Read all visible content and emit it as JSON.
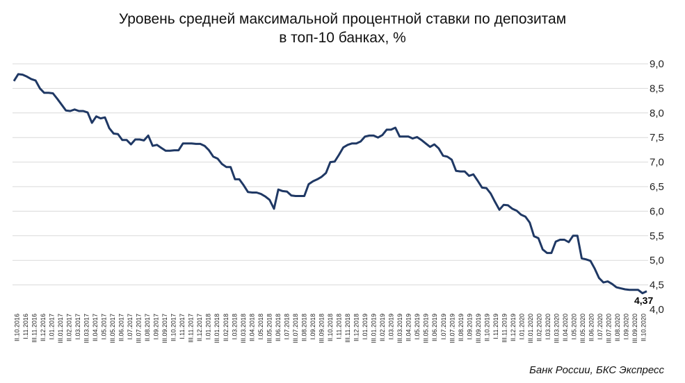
{
  "chart_data": {
    "type": "line",
    "title_line1": "Уровень средней максимальной процентной ставки по депозитам",
    "title_line2": "в топ-10 банках, %",
    "source": "Банк России, БКС Экспресс",
    "ylim": [
      4.0,
      9.0
    ],
    "y_ticks": [
      "4,0",
      "4,5",
      "5,0",
      "5,5",
      "6,0",
      "6,5",
      "7,0",
      "7,5",
      "8,0",
      "8,5",
      "9,0"
    ],
    "y_tick_values": [
      4.0,
      4.5,
      5.0,
      5.5,
      6.0,
      6.5,
      7.0,
      7.5,
      8.0,
      8.5,
      9.0
    ],
    "grid": true,
    "x_labels": [
      "II.10.2016",
      "I.11.2016",
      "III.11.2016",
      "II.12.2016",
      "I.01.2017",
      "III.01.2017",
      "II.02.2017",
      "I.03.2017",
      "III.03.2017",
      "II.04.2017",
      "I.05.2017",
      "III.05.2017",
      "II.06.2017",
      "I.07.2017",
      "III.07.2017",
      "II.08.2017",
      "I.09.2017",
      "III.09.2017",
      "II.10.2017",
      "I.11.2017",
      "III.11.2017",
      "II.12.2017",
      "I.01.2018",
      "III.01.2018",
      "II.02.2018",
      "I.03.2018",
      "III.03.2018",
      "II.04.2018",
      "I.05.2018",
      "III.05.2018",
      "II.06.2018",
      "I.07.2018",
      "III.07.2018",
      "II.08.2018",
      "I.09.2018",
      "III.09.2018",
      "II.10.2018",
      "I.11.2018",
      "III.11.2018",
      "II.12.2018",
      "I.01.2019",
      "III.01.2019",
      "II.02.2019",
      "I.03.2019",
      "III.03.2019",
      "II.04.2019",
      "I.05.2019",
      "III.05.2019",
      "II.06.2019",
      "I.07.2019",
      "III.07.2019",
      "II.08.2019",
      "I.09.2019",
      "III.09.2019",
      "II.10.2019",
      "I.11.2019",
      "III.11.2019",
      "II.12.2019",
      "I.01.2020",
      "III.01.2020",
      "II.02.2020",
      "I.03.2020",
      "III.03.2020",
      "II.04.2020",
      "I.05.2020",
      "III.05.2020",
      "II.06.2020",
      "I.07.2020",
      "III.07.2020",
      "II.08.2020",
      "I.09.2020",
      "III.09.2020",
      "II.10.2020"
    ],
    "series": [
      {
        "color": "#1f3864",
        "values": [
          8.65,
          8.79,
          8.78,
          8.74,
          8.69,
          8.66,
          8.5,
          8.41,
          8.41,
          8.4,
          8.29,
          8.17,
          8.05,
          8.04,
          8.07,
          8.04,
          8.04,
          8.01,
          7.8,
          7.93,
          7.89,
          7.91,
          7.69,
          7.58,
          7.57,
          7.45,
          7.45,
          7.36,
          7.46,
          7.46,
          7.44,
          7.54,
          7.33,
          7.35,
          7.29,
          7.23,
          7.23,
          7.24,
          7.24,
          7.38,
          7.38,
          7.38,
          7.37,
          7.37,
          7.33,
          7.24,
          7.11,
          7.07,
          6.96,
          6.9,
          6.9,
          6.65,
          6.65,
          6.53,
          6.39,
          6.38,
          6.38,
          6.35,
          6.3,
          6.23,
          6.05,
          6.44,
          6.41,
          6.4,
          6.32,
          6.31,
          6.31,
          6.31,
          6.55,
          6.61,
          6.65,
          6.7,
          6.78,
          7.0,
          7.01,
          7.15,
          7.3,
          7.35,
          7.38,
          7.38,
          7.42,
          7.52,
          7.54,
          7.54,
          7.5,
          7.55,
          7.66,
          7.66,
          7.7,
          7.52,
          7.52,
          7.52,
          7.48,
          7.51,
          7.45,
          7.38,
          7.31,
          7.36,
          7.28,
          7.13,
          7.11,
          7.05,
          6.82,
          6.81,
          6.81,
          6.72,
          6.75,
          6.62,
          6.48,
          6.47,
          6.36,
          6.19,
          6.03,
          6.13,
          6.12,
          6.05,
          6.01,
          5.93,
          5.89,
          5.77,
          5.49,
          5.45,
          5.22,
          5.15,
          5.15,
          5.38,
          5.42,
          5.42,
          5.37,
          5.5,
          5.5,
          5.04,
          5.02,
          4.99,
          4.83,
          4.64,
          4.55,
          4.57,
          4.52,
          4.45,
          4.43,
          4.41,
          4.4,
          4.4,
          4.4,
          4.33,
          4.37
        ]
      }
    ],
    "last_value_label": "4,37"
  }
}
